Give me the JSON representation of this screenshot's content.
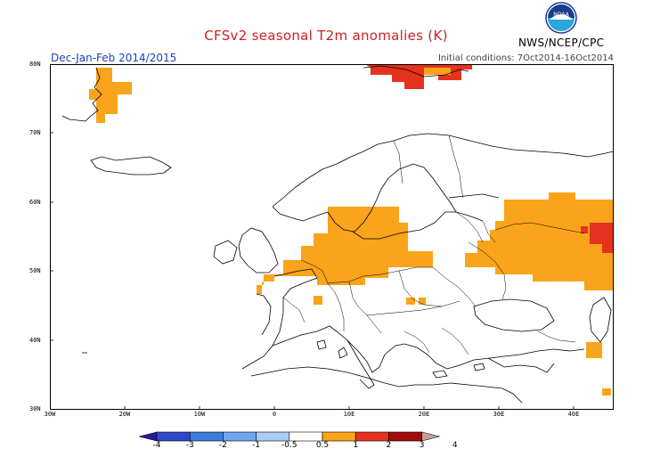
{
  "title": "CFSv2 seasonal T2m anomalies (K)",
  "agency": "NWS/NCEP/CPC",
  "logo_text": "NOAA",
  "season": "Dec-Jan-Feb 2014/2015",
  "initial_conditions": "Initial conditions: 7Oct2014-16Oct2014",
  "lat_labels": [
    "80N",
    "70N",
    "60N",
    "50N",
    "40N",
    "30N"
  ],
  "lon_labels": [
    "30W",
    "20W",
    "10W",
    "0",
    "10E",
    "20E",
    "30E",
    "40E"
  ],
  "colorbar": {
    "labels": [
      "-4",
      "-3",
      "-2",
      "-1",
      "-0.5",
      "0.5",
      "1",
      "2",
      "3",
      "4"
    ],
    "colors": [
      "#2a1a9c",
      "#2f49c8",
      "#3d7ddc",
      "#70a6ec",
      "#a9cdf6",
      "#ffffff",
      "#f9a41a",
      "#e5321f",
      "#a00d0d",
      "#c4a09a"
    ]
  },
  "anomaly_colors": {
    "0.5-1": "#f9a41a",
    "1-2": "#e5321f"
  }
}
